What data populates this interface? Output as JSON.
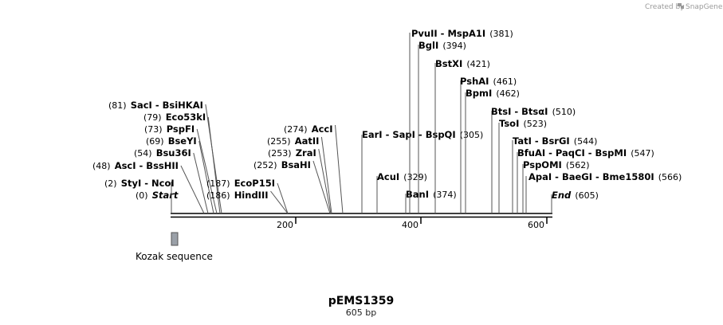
{
  "credit": {
    "prefix": "Created by",
    "brand": "SnapGene"
  },
  "plasmid": {
    "name": "pEMS1359",
    "length_label": "605 bp",
    "length": 605
  },
  "axis": {
    "ticks": [
      {
        "bp": 200,
        "label": "200"
      },
      {
        "bp": 400,
        "label": "400"
      },
      {
        "bp": 600,
        "label": "600"
      }
    ]
  },
  "features": [
    {
      "label": "Kozak sequence",
      "start": 1,
      "end": 10,
      "color": "#9aa0a8"
    }
  ],
  "sites": [
    {
      "names": [
        "Start"
      ],
      "pos": "(0)",
      "italic": true,
      "bp": 0
    },
    {
      "names": [
        "StyI",
        "NcoI"
      ],
      "pos": "(2)",
      "bp": 2
    },
    {
      "names": [
        "AscI",
        "BssHII"
      ],
      "pos": "(48)",
      "bp": 48
    },
    {
      "names": [
        "Bsu36I"
      ],
      "pos": "(54)",
      "bp": 54
    },
    {
      "names": [
        "BseYI"
      ],
      "pos": "(69)",
      "bp": 69
    },
    {
      "names": [
        "PspFI"
      ],
      "pos": "(73)",
      "bp": 73
    },
    {
      "names": [
        "Eco53kI"
      ],
      "pos": "(79)",
      "bp": 79
    },
    {
      "names": [
        "SacI",
        "BsiHKAI"
      ],
      "pos": "(81)",
      "bp": 81
    },
    {
      "names": [
        "HindIII"
      ],
      "pos": "(186)",
      "bp": 186
    },
    {
      "names": [
        "EcoP15I"
      ],
      "pos": "(187)",
      "bp": 187
    },
    {
      "names": [
        "BsaHI"
      ],
      "pos": "(252)",
      "bp": 252
    },
    {
      "names": [
        "ZraI"
      ],
      "pos": "(253)",
      "bp": 253
    },
    {
      "names": [
        "AatII"
      ],
      "pos": "(255)",
      "bp": 255
    },
    {
      "names": [
        "AccI"
      ],
      "pos": "(274)",
      "bp": 274
    },
    {
      "names": [
        "EarI",
        "SapI",
        "BspQI"
      ],
      "pos": "(305)",
      "bp": 305
    },
    {
      "names": [
        "AcuI"
      ],
      "pos": "(329)",
      "bp": 329
    },
    {
      "names": [
        "BanI"
      ],
      "pos": "(374)",
      "bp": 374
    },
    {
      "names": [
        "PvuII",
        "MspA1I"
      ],
      "pos": "(381)",
      "bp": 381
    },
    {
      "names": [
        "BglI"
      ],
      "pos": "(394)",
      "bp": 394
    },
    {
      "names": [
        "BstXI"
      ],
      "pos": "(421)",
      "bp": 421
    },
    {
      "names": [
        "PshAI"
      ],
      "pos": "(461)",
      "bp": 461
    },
    {
      "names": [
        "BpmI"
      ],
      "pos": "(462)",
      "bp": 462
    },
    {
      "names": [
        "BtsI",
        "BtsαI"
      ],
      "pos": "(510)",
      "bp": 510
    },
    {
      "names": [
        "TsoI"
      ],
      "pos": "(523)",
      "bp": 523
    },
    {
      "names": [
        "TatI",
        "BsrGI"
      ],
      "pos": "(544)",
      "bp": 544
    },
    {
      "names": [
        "BfuAI",
        "PaqCI",
        "BspMI"
      ],
      "pos": "(547)",
      "bp": 547
    },
    {
      "names": [
        "PspOMI"
      ],
      "pos": "(562)",
      "bp": 562
    },
    {
      "names": [
        "ApaI",
        "BaeGI",
        "Bme1580I"
      ],
      "pos": "(566)",
      "bp": 566
    },
    {
      "names": [
        "End"
      ],
      "pos": "(605)",
      "italic": true,
      "bp": 605
    }
  ]
}
